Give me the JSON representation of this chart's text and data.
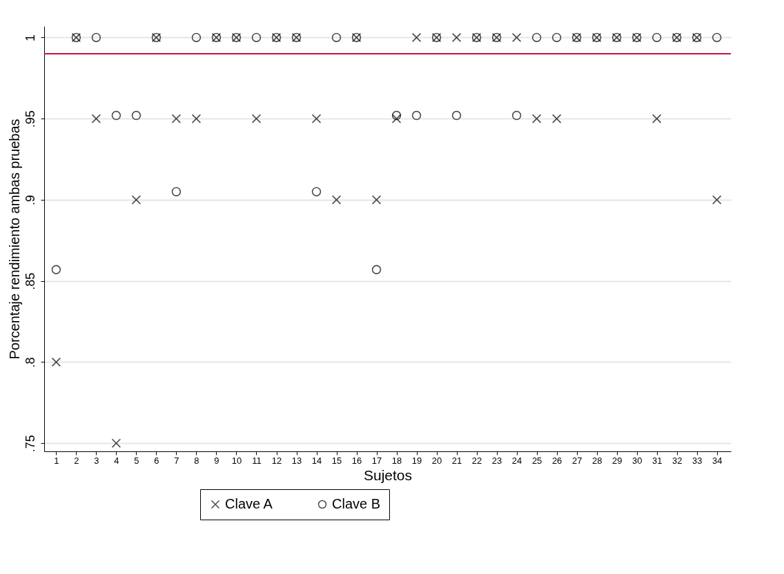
{
  "chart_data": {
    "type": "scatter",
    "xlabel": "Sujetos",
    "ylabel": "Porcentaje rendimiento ambas pruebas",
    "x": [
      1,
      2,
      3,
      4,
      5,
      6,
      7,
      8,
      9,
      10,
      11,
      12,
      13,
      14,
      15,
      16,
      17,
      18,
      19,
      20,
      21,
      22,
      23,
      24,
      25,
      26,
      27,
      28,
      29,
      30,
      31,
      32,
      33,
      34
    ],
    "xlim": [
      0.4,
      34.7
    ],
    "xticks": [
      1,
      2,
      3,
      4,
      5,
      6,
      7,
      8,
      9,
      10,
      11,
      12,
      13,
      14,
      15,
      16,
      17,
      18,
      19,
      20,
      21,
      22,
      23,
      24,
      25,
      26,
      27,
      28,
      29,
      30,
      31,
      32,
      33,
      34
    ],
    "series": [
      {
        "name": "Clave A",
        "color": "#000000",
        "marker": "cross",
        "values": [
          0.8,
          1,
          0.95,
          0.75,
          0.9,
          1,
          0.95,
          0.95,
          1,
          1,
          0.95,
          1,
          1,
          0.95,
          0.9,
          1,
          0.9,
          0.95,
          1,
          1,
          1,
          1,
          1,
          1,
          0.95,
          0.95,
          1,
          1,
          1,
          1,
          0.95,
          1,
          1,
          0.9
        ]
      },
      {
        "name": "Clave B",
        "color": "#000000",
        "marker": "circle",
        "values": [
          0.857,
          1,
          1,
          0.952,
          0.952,
          1,
          0.905,
          1,
          1,
          1,
          1,
          1,
          1,
          0.905,
          1,
          1,
          0.857,
          0.952,
          0.952,
          1,
          0.952,
          1,
          1,
          0.952,
          1,
          1,
          1,
          1,
          1,
          1,
          1,
          1,
          1,
          1
        ]
      }
    ],
    "ylim": [
      0.745,
      1.007
    ],
    "yticks": [
      {
        "value": 0.75,
        "label": ".75"
      },
      {
        "value": 0.8,
        "label": ".8"
      },
      {
        "value": 0.85,
        "label": ".85"
      },
      {
        "value": 0.9,
        "label": ".9"
      },
      {
        "value": 0.95,
        "label": ".95"
      },
      1
    ],
    "ref_lines": [
      {
        "axis": "y",
        "value": 0.99,
        "color": "#c0143c"
      }
    ],
    "grid": "y",
    "legend": "bottom"
  }
}
